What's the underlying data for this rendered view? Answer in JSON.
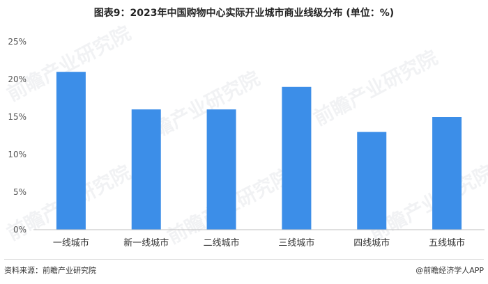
{
  "title": "图表9：2023年中国购物中心实际开业城市商业线级分布 (单位：%)",
  "source": "资料来源：前瞻产业研究院",
  "credit": "@前瞻经济学人APP",
  "watermark_text": "前瞻产业研究院",
  "colors": {
    "bar": "#3c8ee8",
    "axis": "#bfbfbf"
  },
  "chart_data": {
    "type": "bar",
    "categories": [
      "一线城市",
      "新一线城市",
      "二线城市",
      "三线城市",
      "四线城市",
      "五线城市"
    ],
    "values": [
      21,
      16,
      16,
      19,
      13,
      15
    ],
    "yticks": [
      "0%",
      "5%",
      "10%",
      "15%",
      "20%",
      "25%"
    ],
    "ylim": [
      0,
      25
    ],
    "title": "图表9：2023年中国购物中心实际开业城市商业线级分布 (单位：%)",
    "xlabel": "",
    "ylabel": "",
    "grid": false
  }
}
